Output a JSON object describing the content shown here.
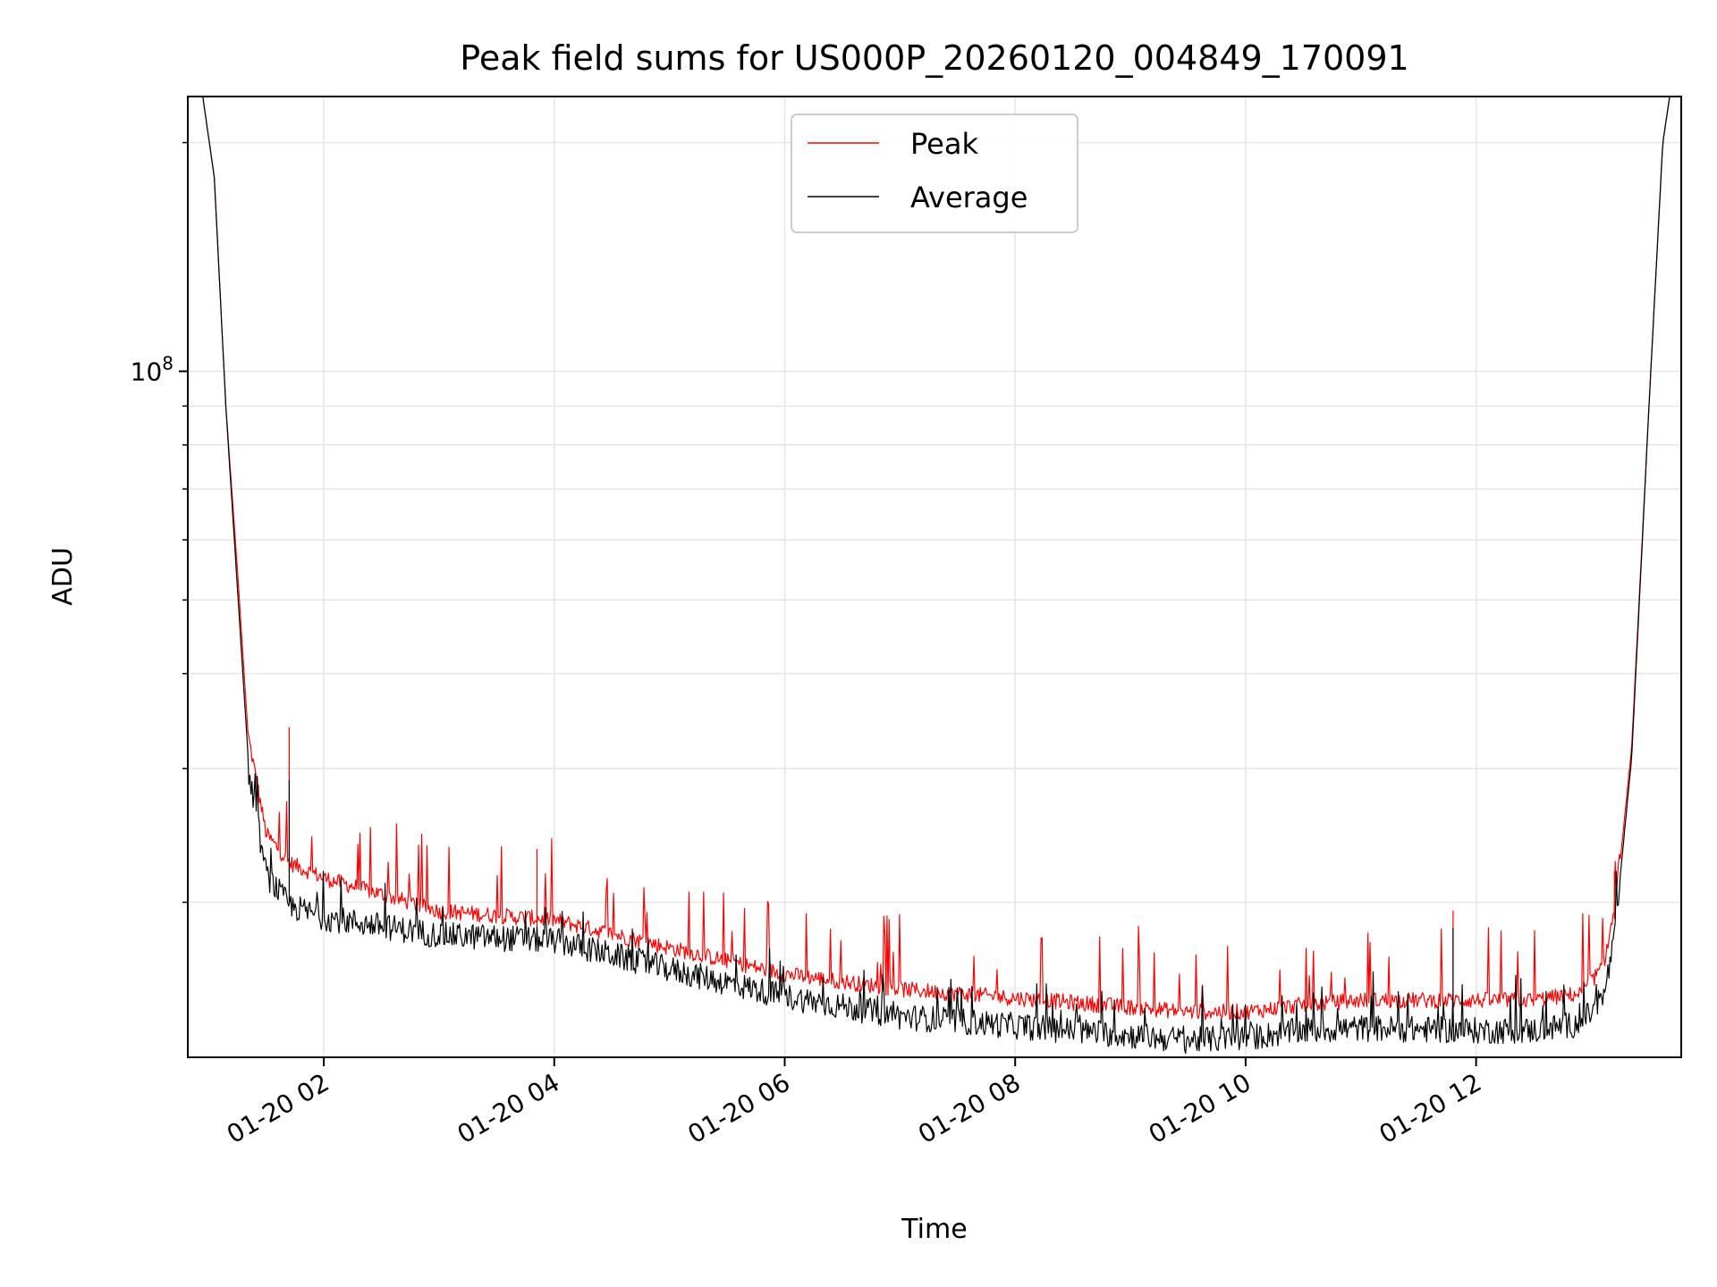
{
  "chart_data": {
    "type": "line",
    "title": "Peak field sums for US000P_20260120_004849_170091",
    "xlabel": "Time",
    "ylabel": "ADU",
    "yscale": "log",
    "ylim": [
      12500000,
      230000000
    ],
    "xlim_hours": [
      0.82,
      13.78
    ],
    "x_unit": "hours since 01-20 00:00",
    "grid": true,
    "legend_position": "upper center",
    "x_ticks": [
      {
        "value": 2,
        "label": "01-20 02"
      },
      {
        "value": 4,
        "label": "01-20 04"
      },
      {
        "value": 6,
        "label": "01-20 06"
      },
      {
        "value": 8,
        "label": "01-20 08"
      },
      {
        "value": 10,
        "label": "01-20 10"
      },
      {
        "value": 12,
        "label": "01-20 12"
      }
    ],
    "y_major_ticks": [
      {
        "value": 100000000,
        "base": "10",
        "exponent": "8"
      }
    ],
    "y_minor_ticks": [
      20000000,
      30000000,
      40000000,
      50000000,
      60000000,
      70000000,
      80000000,
      90000000,
      200000000
    ],
    "series": [
      {
        "name": "Peak",
        "color": "#ff0000",
        "style": "noisy with frequent upward spikes",
        "envelope": [
          {
            "x": 0.95,
            "y": 230000000
          },
          {
            "x": 1.05,
            "y": 180000000
          },
          {
            "x": 1.15,
            "y": 90000000
          },
          {
            "x": 1.25,
            "y": 55000000
          },
          {
            "x": 1.35,
            "y": 32000000
          },
          {
            "x": 1.5,
            "y": 24000000
          },
          {
            "x": 1.7,
            "y": 22000000
          },
          {
            "x": 2.0,
            "y": 21000000
          },
          {
            "x": 2.5,
            "y": 20000000
          },
          {
            "x": 3.0,
            "y": 19000000
          },
          {
            "x": 4.0,
            "y": 18500000
          },
          {
            "x": 5.0,
            "y": 17000000
          },
          {
            "x": 6.0,
            "y": 15700000
          },
          {
            "x": 7.0,
            "y": 15000000
          },
          {
            "x": 8.0,
            "y": 14600000
          },
          {
            "x": 9.0,
            "y": 14200000
          },
          {
            "x": 9.5,
            "y": 14000000
          },
          {
            "x": 10.0,
            "y": 14000000
          },
          {
            "x": 10.5,
            "y": 14300000
          },
          {
            "x": 11.0,
            "y": 14500000
          },
          {
            "x": 12.0,
            "y": 14500000
          },
          {
            "x": 12.5,
            "y": 14500000
          },
          {
            "x": 12.9,
            "y": 14800000
          },
          {
            "x": 13.1,
            "y": 16000000
          },
          {
            "x": 13.2,
            "y": 19000000
          },
          {
            "x": 13.35,
            "y": 32000000
          },
          {
            "x": 13.5,
            "y": 90000000
          },
          {
            "x": 13.62,
            "y": 200000000
          },
          {
            "x": 13.68,
            "y": 230000000
          }
        ],
        "notable_spikes": [
          {
            "x": 1.7,
            "y": 34000000
          },
          {
            "x": 3.85,
            "y": 23500000
          },
          {
            "x": 11.8,
            "y": 19500000
          },
          {
            "x": 13.2,
            "y": 22000000
          }
        ]
      },
      {
        "name": "Average",
        "color": "#000000",
        "style": "noisy, slightly below Peak",
        "envelope": [
          {
            "x": 0.95,
            "y": 230000000
          },
          {
            "x": 1.05,
            "y": 180000000
          },
          {
            "x": 1.15,
            "y": 90000000
          },
          {
            "x": 1.25,
            "y": 52000000
          },
          {
            "x": 1.35,
            "y": 30000000
          },
          {
            "x": 1.5,
            "y": 22000000
          },
          {
            "x": 1.7,
            "y": 20000000
          },
          {
            "x": 2.0,
            "y": 19300000
          },
          {
            "x": 2.5,
            "y": 18800000
          },
          {
            "x": 3.0,
            "y": 18300000
          },
          {
            "x": 4.0,
            "y": 18000000
          },
          {
            "x": 5.0,
            "y": 16500000
          },
          {
            "x": 6.0,
            "y": 15200000
          },
          {
            "x": 7.0,
            "y": 14300000
          },
          {
            "x": 8.0,
            "y": 13900000
          },
          {
            "x": 9.0,
            "y": 13500000
          },
          {
            "x": 9.5,
            "y": 13300000
          },
          {
            "x": 10.0,
            "y": 13400000
          },
          {
            "x": 10.5,
            "y": 13700000
          },
          {
            "x": 11.0,
            "y": 13800000
          },
          {
            "x": 12.0,
            "y": 13700000
          },
          {
            "x": 12.5,
            "y": 13700000
          },
          {
            "x": 12.9,
            "y": 14000000
          },
          {
            "x": 13.1,
            "y": 15000000
          },
          {
            "x": 13.2,
            "y": 18000000
          },
          {
            "x": 13.35,
            "y": 31000000
          },
          {
            "x": 13.5,
            "y": 90000000
          },
          {
            "x": 13.62,
            "y": 200000000
          },
          {
            "x": 13.68,
            "y": 230000000
          }
        ],
        "notable_spikes": [
          {
            "x": 1.7,
            "y": 29000000
          },
          {
            "x": 11.8,
            "y": 18500000
          }
        ]
      }
    ]
  }
}
